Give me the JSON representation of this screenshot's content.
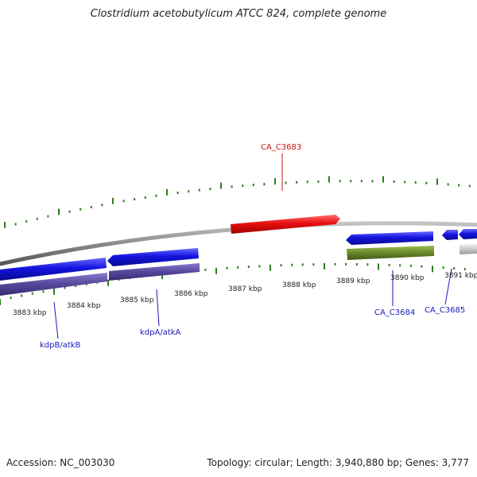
{
  "title": "Clostridium acetobutylicum ATCC 824, complete genome",
  "footer": {
    "accession": "Accession: NC_003030",
    "summary": "Topology: circular; Length: 3,940,880 bp; Genes: 3,777"
  },
  "colors": {
    "backbone": "#8a8a8a",
    "tick": "#2e7d1e",
    "gene_red": "#e81010",
    "gene_blue": "#1414e0",
    "gene_purple": "#5a4aa0",
    "gene_olive": "#6e8c2a",
    "gene_gray": "#c8c8c8",
    "label_red": "#cc1111",
    "label_blue": "#1a1ab8"
  },
  "scale": {
    "labels": [
      "3883 kbp",
      "3884 kbp",
      "3885 kbp",
      "3886 kbp",
      "3887 kbp",
      "3888 kbp",
      "3889 kbp",
      "3890 kbp",
      "3891 kbp"
    ]
  },
  "genes": {
    "ca_c3683": "CA_C3683",
    "ca_c3684": "CA_C3684",
    "ca_c3685": "CA_C3685",
    "kdpb": "kdpB/atkB",
    "kdpa": "kdpA/atkA"
  }
}
